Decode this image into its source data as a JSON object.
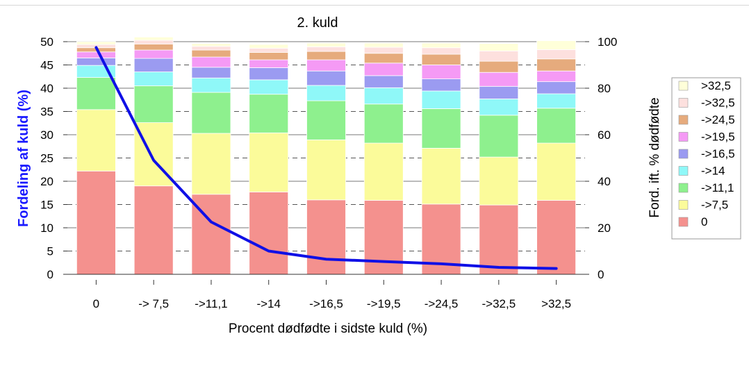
{
  "chart_data": {
    "type": "bar",
    "stacked": true,
    "title": "2. kuld",
    "xlabel": "Procent dødfødte i sidste kuld (%)",
    "ylabel": "Fordeling af kuld (%)",
    "ylabel_color": "#1a1aff",
    "y2label": "Ford. ift. % dødfødte",
    "ylim": [
      0,
      50
    ],
    "y2lim": [
      0,
      100
    ],
    "yticks": [
      0,
      5,
      10,
      15,
      20,
      25,
      30,
      35,
      40,
      45,
      50
    ],
    "y2ticks": [
      0,
      20,
      40,
      60,
      80,
      100
    ],
    "grid": "dashed horizontal",
    "legend_position": "right",
    "categories": [
      "0",
      "-> 7,5",
      "->11,1",
      "->14",
      "->16,5",
      "->19,5",
      "->24,5",
      "->32,5",
      ">32,5"
    ],
    "series": [
      {
        "name": "0",
        "color": "#f4918e",
        "values": [
          22.2,
          19.0,
          17.2,
          17.7,
          16.0,
          15.9,
          15.1,
          14.9,
          15.9
        ]
      },
      {
        "name": "->7,5",
        "color": "#fbfb9a",
        "values": [
          13.2,
          13.6,
          13.1,
          12.7,
          12.9,
          12.3,
          12.0,
          10.3,
          12.3
        ]
      },
      {
        "name": "->11,1",
        "color": "#8ef08e",
        "values": [
          6.9,
          7.9,
          8.8,
          8.3,
          8.4,
          8.4,
          8.5,
          9.0,
          7.5
        ]
      },
      {
        "name": "->14",
        "color": "#8ff8f8",
        "values": [
          2.6,
          3.0,
          3.1,
          3.1,
          3.3,
          3.5,
          3.8,
          3.5,
          3.1
        ]
      },
      {
        "name": "->16,5",
        "color": "#9b9bf1",
        "values": [
          1.6,
          2.9,
          2.3,
          2.6,
          3.1,
          2.6,
          2.6,
          2.7,
          2.6
        ]
      },
      {
        "name": "->19,5",
        "color": "#f59af5",
        "values": [
          1.3,
          1.8,
          2.2,
          1.7,
          2.4,
          2.7,
          3.0,
          3.0,
          2.3
        ]
      },
      {
        "name": "->24,5",
        "color": "#e6ab7d",
        "values": [
          0.9,
          1.3,
          1.5,
          1.6,
          1.8,
          2.1,
          2.3,
          2.4,
          2.6
        ]
      },
      {
        "name": "->32,5",
        "color": "#fde0de",
        "values": [
          0.7,
          0.8,
          0.8,
          0.9,
          1.0,
          1.3,
          1.4,
          2.2,
          2.0
        ]
      },
      {
        "name": ">32,5",
        "color": "#ffffd9",
        "values": [
          0.6,
          0.7,
          0.6,
          0.8,
          0.8,
          0.9,
          1.0,
          1.6,
          1.9
        ]
      }
    ],
    "line": {
      "axis": "y2",
      "color": "#1010e6",
      "values": [
        97.5,
        49.0,
        22.5,
        10.0,
        6.5,
        5.5,
        4.5,
        3.0,
        2.5
      ]
    }
  }
}
